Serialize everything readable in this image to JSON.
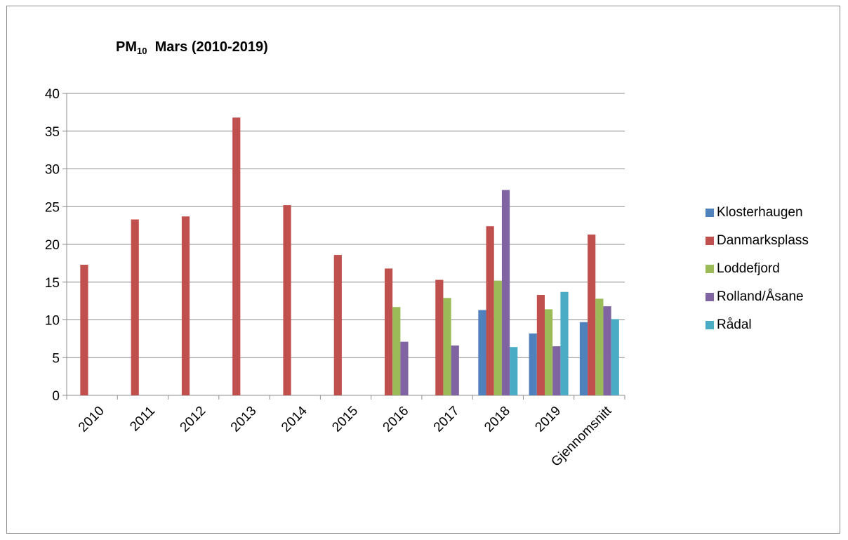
{
  "chart_data": {
    "type": "bar",
    "title_main": "PM",
    "title_sub": "10",
    "title_rest": "Mars (2010-2019)",
    "categories": [
      "2010",
      "2011",
      "2012",
      "2013",
      "2014",
      "2015",
      "2016",
      "2017",
      "2018",
      "2019",
      "Gjennomsnitt"
    ],
    "ylim": [
      0,
      40
    ],
    "yticks": [
      "0",
      "5",
      "10",
      "15",
      "20",
      "25",
      "30",
      "35",
      "40"
    ],
    "grid": true,
    "legend_position": "right",
    "series": [
      {
        "name": "Klosterhaugen",
        "color": "#4f81bd",
        "values": [
          null,
          null,
          null,
          null,
          null,
          null,
          null,
          null,
          11.3,
          8.2,
          9.7
        ]
      },
      {
        "name": "Danmarksplass",
        "color": "#c0504d",
        "values": [
          17.3,
          23.3,
          23.7,
          36.8,
          25.2,
          18.6,
          16.8,
          15.3,
          22.4,
          13.3,
          21.3
        ]
      },
      {
        "name": "Loddefjord",
        "color": "#9bbb59",
        "values": [
          null,
          null,
          null,
          null,
          null,
          null,
          11.7,
          12.9,
          15.2,
          11.4,
          12.8
        ]
      },
      {
        "name": "Rolland/Åsane",
        "color": "#8064a2",
        "values": [
          null,
          null,
          null,
          null,
          null,
          null,
          7.1,
          6.6,
          27.2,
          6.5,
          11.8
        ]
      },
      {
        "name": "Rådal",
        "color": "#4bacc6",
        "values": [
          null,
          null,
          null,
          null,
          null,
          null,
          null,
          null,
          6.4,
          13.7,
          10.1
        ]
      }
    ]
  }
}
